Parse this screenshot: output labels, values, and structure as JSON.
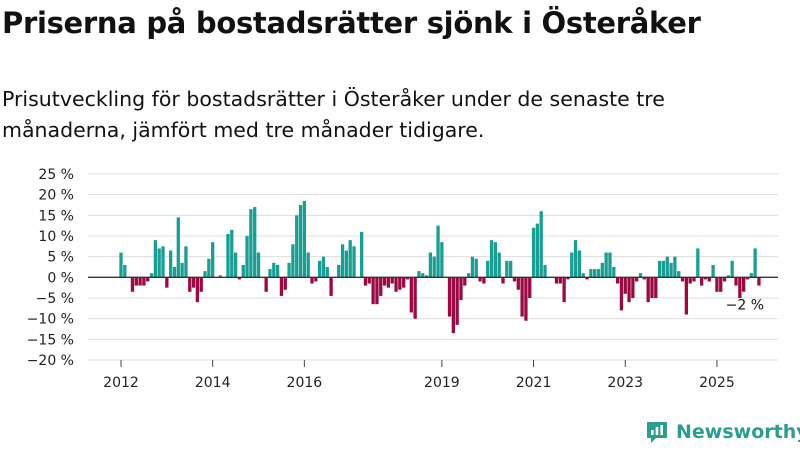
{
  "title": "Priserna på bostadsrätter sjönk i Österåker",
  "subtitle": "Prisutveckling för bostadsrätter i Österåker under de senaste tre månaderna, jämfört med tre månader tidigare.",
  "brand": {
    "name": "Newsworthy",
    "logo_icon": "newsworthy-logo-icon"
  },
  "colors": {
    "positive": "#1a9e94",
    "negative": "#990a44",
    "grid": "#dddddd",
    "zero_line": "#333333",
    "brand": "#2a9d8f"
  },
  "chart_data": {
    "type": "bar",
    "x_type": "month",
    "x_start": "2012-01",
    "y_ticks": [
      25,
      20,
      15,
      10,
      5,
      0,
      -5,
      -10,
      -15,
      -20
    ],
    "y_tick_labels": [
      "25 %",
      "20 %",
      "15 %",
      "10 %",
      "5 %",
      "0 %",
      "−5 %",
      "−10 %",
      "−15 %",
      "−20 %"
    ],
    "ylim": [
      -20,
      25
    ],
    "x_tick_labels": [
      {
        "label": "2012",
        "month": "2012-01"
      },
      {
        "label": "2014",
        "month": "2014-01"
      },
      {
        "label": "2016",
        "month": "2016-01"
      },
      {
        "label": "2019",
        "month": "2019-01"
      },
      {
        "label": "2021",
        "month": "2021-01"
      },
      {
        "label": "2023",
        "month": "2023-01"
      },
      {
        "label": "2025",
        "month": "2025-01"
      }
    ],
    "annotation": {
      "text": "−2 %",
      "month": "2025-08",
      "value": -2
    },
    "values": [
      6,
      3,
      0,
      -3.5,
      -2,
      -2,
      -2,
      -1,
      1,
      9,
      7,
      7.5,
      -2.5,
      6.5,
      2.5,
      14.5,
      3.5,
      7.5,
      -3.5,
      -2.5,
      -6,
      -3.5,
      1.5,
      4.5,
      8.5,
      0,
      0.5,
      0,
      10.5,
      11.5,
      6,
      -0.5,
      3,
      10,
      16.5,
      17,
      6,
      0,
      -3.5,
      2,
      3.5,
      3,
      -4.5,
      -3,
      3.5,
      8,
      15,
      17.5,
      18.5,
      6,
      -1.5,
      -1,
      4,
      5,
      2.5,
      -4.5,
      0,
      3,
      8,
      6.5,
      9,
      7.5,
      0,
      11,
      -2,
      -1.5,
      -6.5,
      -6.5,
      -4.5,
      -2,
      -2.5,
      -1.5,
      -3.5,
      -3,
      -2.5,
      -0.5,
      -8.5,
      -10,
      1.5,
      1,
      0.5,
      6,
      5,
      12.5,
      8.5,
      0,
      -9.5,
      -13.5,
      -11.5,
      -5.5,
      -2,
      1,
      5,
      4.5,
      -1,
      -1.5,
      4,
      9,
      8.5,
      6,
      -1.5,
      4,
      4,
      -1,
      -3,
      -9.5,
      -10.5,
      -5,
      12,
      13,
      16,
      3,
      0,
      0,
      -1.5,
      -1.5,
      -6,
      -0.5,
      6,
      9,
      6.5,
      1,
      -0.5,
      2,
      2,
      2,
      3.5,
      6,
      6,
      2.5,
      -1.5,
      -8,
      -4,
      -6,
      -5,
      -1,
      1,
      -0.5,
      -6,
      -5,
      -5,
      4,
      4,
      5,
      3.5,
      5,
      1.5,
      -1,
      -9,
      -1.5,
      -1,
      7,
      -2,
      -0.5,
      -1,
      3,
      -3.5,
      -3.5,
      -1,
      0.5,
      4,
      -2,
      -5,
      -3.5,
      -0.5,
      1,
      7,
      -2
    ]
  }
}
